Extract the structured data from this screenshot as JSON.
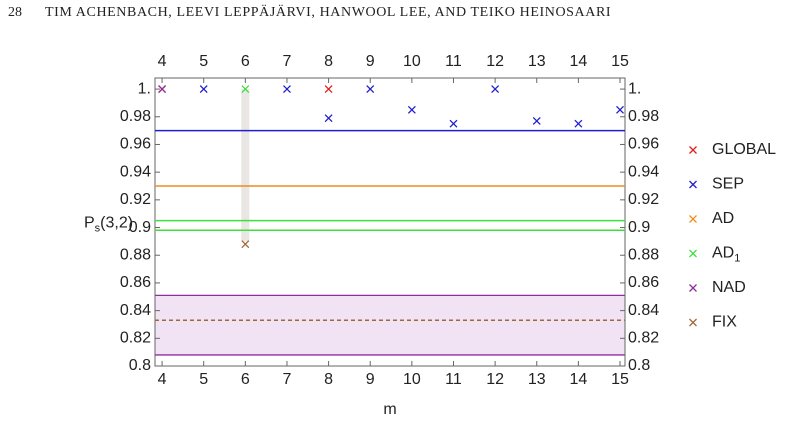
{
  "header": {
    "page_number": "28",
    "authors": "TIM ACHENBACH, LEEVI LEPPÄJÄRVI, HANWOOL LEE, AND TEIKO HEINOSAARI"
  },
  "chart_data": {
    "type": "scatter",
    "xlabel": "m",
    "ylabel": {
      "main": "P",
      "sub": "s",
      "rest": "(3,2)"
    },
    "xlim": [
      3.83,
      15.12
    ],
    "ylim": [
      0.8,
      1.008
    ],
    "xticks": [
      4,
      5,
      6,
      7,
      8,
      9,
      10,
      11,
      12,
      13,
      14,
      15
    ],
    "yticks": [
      0.8,
      0.82,
      0.84,
      0.86,
      0.88,
      0.9,
      0.92,
      0.94,
      0.96,
      0.98,
      {
        "value": 1,
        "label": "1."
      }
    ],
    "series": [
      {
        "name": "GLOBAL",
        "color": "#e0201b",
        "x": [
          4,
          8
        ],
        "values": [
          1,
          1
        ]
      },
      {
        "name": "SEP",
        "color": "#1f1fd0",
        "x": [
          5,
          7,
          8,
          9,
          10,
          11,
          12,
          13,
          14,
          15
        ],
        "values": [
          1,
          1,
          0.979,
          1,
          0.985,
          0.975,
          1,
          0.977,
          0.975,
          0.985
        ],
        "lines": [
          0.97
        ]
      },
      {
        "name": "AD",
        "color": "#f08c1e",
        "x": [],
        "values": [],
        "lines": [
          0.93
        ]
      },
      {
        "name": "AD",
        "subscript": "1",
        "color": "#3ee03e",
        "x": [
          6
        ],
        "values": [
          1
        ],
        "lines": [
          0.905,
          0.898
        ]
      },
      {
        "name": "NAD",
        "color": "#8e2e9e",
        "x": [
          4
        ],
        "values": [
          1
        ],
        "band": [
          0.808,
          0.851
        ]
      },
      {
        "name": "FIX",
        "color": "#a0683a",
        "x": [
          6
        ],
        "values": [
          0.888
        ],
        "dashed_lines": [
          0.833
        ],
        "range": {
          "x": 6,
          "y": [
            0.89,
            1
          ]
        }
      }
    ]
  }
}
